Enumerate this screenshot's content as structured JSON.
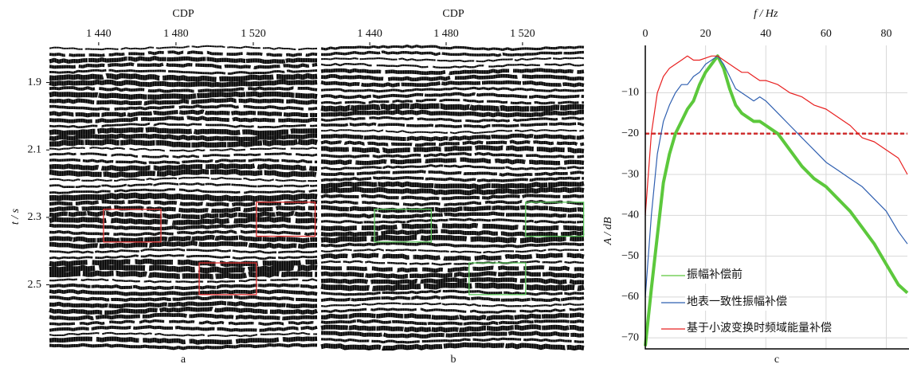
{
  "chart_data": [
    {
      "type": "seismic",
      "panel": "a",
      "xlabel": "CDP",
      "ylabel": "t / s",
      "xlim": [
        1414.5,
        1553
      ],
      "ylim": [
        1.79,
        2.69
      ],
      "xticks": [
        {
          "value": 1440,
          "label": "1 440"
        },
        {
          "value": 1480,
          "label": "1 480"
        },
        {
          "value": 1520,
          "label": "1 520"
        }
      ],
      "yticks": [
        1.9,
        2.1,
        2.3,
        2.5
      ],
      "box_color": "#e03030",
      "boxes": [
        [
          1442.5,
          1472.2,
          2.276,
          2.373
        ],
        [
          1521.6,
          1552,
          2.255,
          2.356
        ],
        [
          1492,
          1521.6,
          2.435,
          2.529
        ]
      ]
    },
    {
      "type": "seismic",
      "panel": "b",
      "xlabel": "CDP",
      "xlim": [
        1414.5,
        1553
      ],
      "ylim": [
        1.79,
        2.69
      ],
      "xticks": [
        {
          "value": 1440,
          "label": "1 440"
        },
        {
          "value": 1480,
          "label": "1 480"
        },
        {
          "value": 1520,
          "label": "1 520"
        }
      ],
      "box_color": "#5cc85c",
      "boxes": [
        [
          1442.5,
          1472.2,
          2.276,
          2.373
        ],
        [
          1521.6,
          1552,
          2.255,
          2.356
        ],
        [
          1492,
          1521.6,
          2.435,
          2.529
        ]
      ]
    },
    {
      "type": "line",
      "panel": "c",
      "xlabel": "f / Hz",
      "ylabel": "A / dB",
      "xlim": [
        0,
        87
      ],
      "ylim": [
        -72.7,
        1.6
      ],
      "xticks": [
        0,
        20,
        40,
        60,
        80
      ],
      "yticks": [
        {
          "value": -10,
          "label": "−10"
        },
        {
          "value": -20,
          "label": "−20"
        },
        {
          "value": -30,
          "label": "−30"
        },
        {
          "value": -40,
          "label": "−40"
        },
        {
          "value": -50,
          "label": "−50"
        },
        {
          "value": -60,
          "label": "−60"
        },
        {
          "value": -70,
          "label": "−70"
        }
      ],
      "grid": true,
      "legend": "lower left",
      "hline": {
        "value": -20,
        "color": "#d03030"
      },
      "x": [
        0,
        2,
        4,
        6,
        8,
        10,
        12,
        14,
        16,
        18,
        20,
        22,
        24,
        26,
        28,
        30,
        32,
        34,
        36,
        38,
        40,
        44,
        48,
        52,
        56,
        60,
        64,
        68,
        72,
        76,
        80,
        84,
        87
      ],
      "series": [
        {
          "name": "振幅补偿前",
          "color": "#5cc83c",
          "width": 4,
          "values": [
            -72,
            -58,
            -45,
            -32,
            -25,
            -20,
            -17,
            -14,
            -12,
            -8,
            -5,
            -3,
            -1,
            -4,
            -9,
            -13,
            -15,
            -16,
            -17,
            -17,
            -18,
            -20,
            -24,
            -28,
            -31,
            -33,
            -36,
            -39,
            -43,
            -47,
            -52,
            -57,
            -59
          ]
        },
        {
          "name": "地表一致性振幅补偿",
          "color": "#2f5fb0",
          "width": 1.2,
          "values": [
            -60,
            -40,
            -25,
            -17,
            -13,
            -10,
            -8,
            -8,
            -6,
            -5,
            -3,
            -2,
            -1,
            -3,
            -6,
            -9,
            -10,
            -11,
            -12,
            -11,
            -12,
            -15,
            -18,
            -21,
            -24,
            -27,
            -29,
            -31,
            -33,
            -36,
            -39,
            -44,
            -47
          ]
        },
        {
          "name": "基于小波变换时频域能量补偿",
          "color": "#e82020",
          "width": 1.2,
          "values": [
            -40,
            -20,
            -10,
            -6,
            -4,
            -3,
            -2,
            -1,
            -2,
            -2,
            -1.5,
            -1,
            -1,
            -2,
            -3,
            -4,
            -5,
            -5,
            -6,
            -7,
            -7,
            -8,
            -10,
            -11,
            -13,
            -14,
            -16,
            -18,
            -21,
            -22,
            -24,
            -26,
            -30
          ]
        }
      ]
    }
  ]
}
